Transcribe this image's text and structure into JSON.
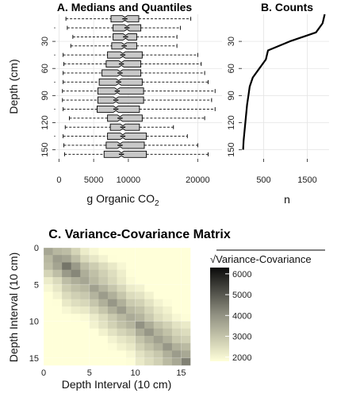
{
  "chart_data": [
    {
      "type": "boxplot",
      "title": "A. Medians and Quantiles",
      "xlabel": "g Organic CO",
      "xlabel_sub": "2",
      "ylabel": "Depth (cm)",
      "xlim": [
        -500,
        23500
      ],
      "xticks": [
        0,
        5000,
        10000,
        20000
      ],
      "xtick_labels": [
        "0",
        "5000",
        "10000",
        "20000"
      ],
      "ylim": [
        160,
        0
      ],
      "yticks": [
        30,
        60,
        90,
        120,
        150
      ],
      "yticks_minor": [
        15,
        45,
        75,
        105,
        135
      ],
      "grid": true,
      "fill_color": "#c8c8c8",
      "depth": [
        5,
        15,
        25,
        35,
        45,
        55,
        65,
        75,
        85,
        95,
        105,
        115,
        125,
        135,
        145,
        155
      ],
      "whisker_low": [
        1000,
        1200,
        2000,
        1700,
        600,
        700,
        600,
        600,
        500,
        500,
        600,
        1500,
        900,
        600,
        700,
        800
      ],
      "q1": [
        7500,
        7800,
        7800,
        7600,
        7000,
        6800,
        6200,
        5800,
        5600,
        5600,
        5500,
        7000,
        7400,
        7000,
        6800,
        6500
      ],
      "median": [
        9500,
        9800,
        9600,
        9400,
        9200,
        9000,
        8800,
        8600,
        8400,
        8200,
        8200,
        8800,
        9200,
        9200,
        8800,
        9000
      ],
      "q3": [
        11500,
        11800,
        11200,
        11200,
        12000,
        11800,
        11800,
        12000,
        12200,
        12200,
        11600,
        12000,
        11600,
        12600,
        12300,
        12600
      ],
      "whisker_high": [
        19000,
        17500,
        17000,
        17000,
        20000,
        20500,
        21000,
        21500,
        22500,
        22000,
        22500,
        21000,
        16500,
        18500,
        20000,
        21500
      ]
    },
    {
      "type": "line",
      "title": "B. Counts",
      "xlabel": "n",
      "xlim": [
        0,
        2000
      ],
      "xticks": [
        500,
        1500
      ],
      "xtick_labels": [
        "500",
        "1500"
      ],
      "ylim": [
        160,
        0
      ],
      "yticks": [
        30,
        60,
        90,
        120,
        150
      ],
      "grid": true,
      "line_color": "#000000",
      "x": [
        1900,
        1850,
        1700,
        1100,
        600,
        550,
        400,
        250,
        180,
        150,
        120,
        100,
        80,
        60,
        40,
        30
      ],
      "y": [
        0,
        10,
        20,
        30,
        40,
        50,
        60,
        70,
        80,
        90,
        100,
        110,
        120,
        130,
        140,
        150
      ]
    },
    {
      "type": "heatmap",
      "title": "C. Variance-Covariance Matrix",
      "xlabel": "Depth Interval (10 cm)",
      "ylabel": "Depth Interval (10 cm)",
      "xlim": [
        0,
        16
      ],
      "ylim": [
        16,
        0
      ],
      "xticks": [
        0,
        5,
        10,
        15
      ],
      "yticks": [
        0,
        5,
        10,
        15
      ],
      "grid": true,
      "legend_title": "Variance-Covariance",
      "legend_title_prefix": "√",
      "legend_placement": "right",
      "legend_ticks": [
        2000,
        3000,
        4000,
        5000,
        6000
      ],
      "legend_range": [
        1800,
        6300
      ],
      "color_low": "#ffffd9",
      "color_mid": "#909081",
      "color_high": "#0a0a0a",
      "note": "",
      "sd": [
        3600,
        3800,
        4500,
        4200,
        3600,
        3700,
        3800,
        3900,
        3800,
        3500,
        4000,
        3900,
        3700,
        3900,
        3800,
        4300
      ]
    }
  ]
}
